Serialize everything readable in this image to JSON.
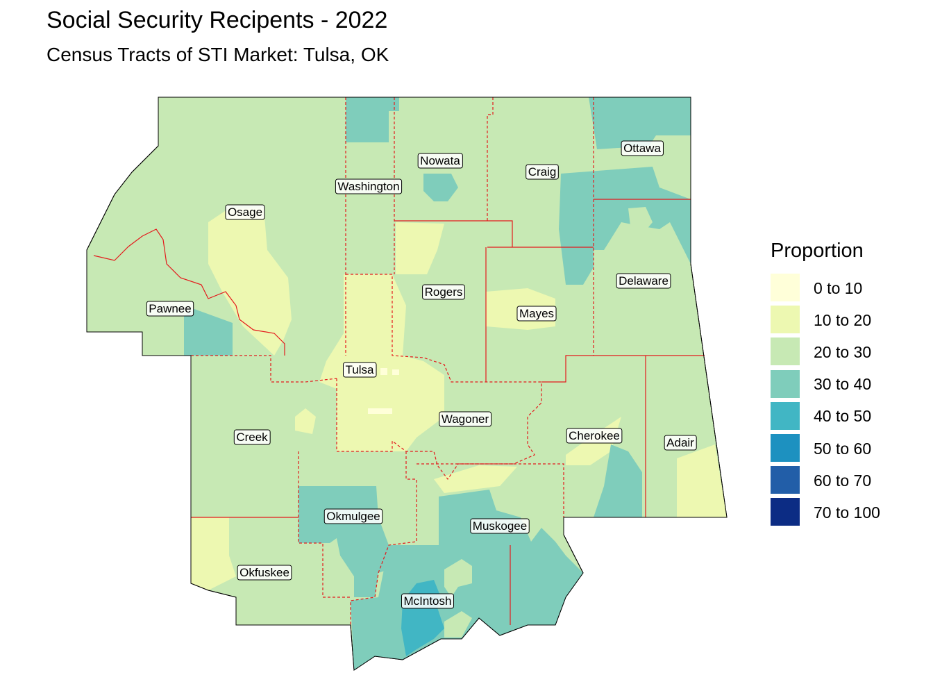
{
  "title": "Social Security Recipents - 2022",
  "subtitle": "Census Tracts of STI Market: Tulsa, OK",
  "legend": {
    "title": "Proportion",
    "items": [
      {
        "label": "0 to 10",
        "color": "#ffffd9"
      },
      {
        "label": "10 to 20",
        "color": "#edf8b1"
      },
      {
        "label": "20 to 30",
        "color": "#c7e9b4"
      },
      {
        "label": "30 to 40",
        "color": "#7fcdbb"
      },
      {
        "label": "40 to 50",
        "color": "#41b6c4"
      },
      {
        "label": "50 to 60",
        "color": "#1d91c0"
      },
      {
        "label": "60 to 70",
        "color": "#225ea8"
      },
      {
        "label": "70 to 100",
        "color": "#0c2c84"
      }
    ]
  },
  "counties": [
    {
      "name": "Osage"
    },
    {
      "name": "Washington"
    },
    {
      "name": "Nowata"
    },
    {
      "name": "Craig"
    },
    {
      "name": "Ottawa"
    },
    {
      "name": "Pawnee"
    },
    {
      "name": "Rogers"
    },
    {
      "name": "Mayes"
    },
    {
      "name": "Delaware"
    },
    {
      "name": "Tulsa"
    },
    {
      "name": "Wagoner"
    },
    {
      "name": "Creek"
    },
    {
      "name": "Cherokee"
    },
    {
      "name": "Adair"
    },
    {
      "name": "Okmulgee"
    },
    {
      "name": "Muskogee"
    },
    {
      "name": "Okfuskee"
    },
    {
      "name": "McIntosh"
    }
  ],
  "colors": {
    "boundary": "#e41a1c",
    "outline": "#000000"
  }
}
